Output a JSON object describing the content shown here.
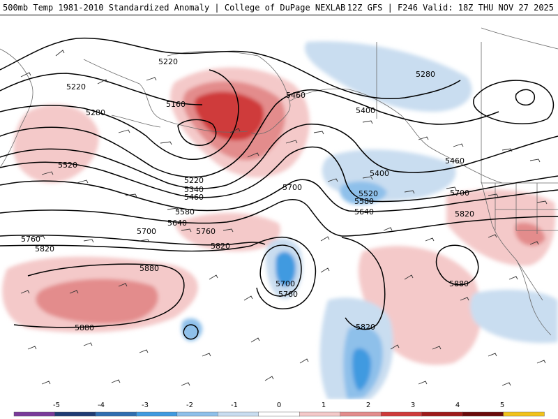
{
  "header": {
    "title_left": "500mb Temp 1981-2010 Standardized Anomaly | College of DuPage NEXLAB",
    "title_right": "12Z GFS | F246 Valid: 18Z THU NOV 27 2025"
  },
  "colors": {
    "coast": "#6a6a6a",
    "contour": "#000000",
    "barb": "#333333"
  },
  "contours": [
    {
      "label": "5220"
    },
    {
      "label": "5220"
    },
    {
      "label": "5160"
    },
    {
      "label": "5280"
    },
    {
      "label": "5460"
    },
    {
      "label": "5400"
    },
    {
      "label": "5280"
    },
    {
      "label": "5520"
    },
    {
      "label": "5220"
    },
    {
      "label": "5340"
    },
    {
      "label": "5460"
    },
    {
      "label": "5400"
    },
    {
      "label": "5520"
    },
    {
      "label": "5580"
    },
    {
      "label": "5640"
    },
    {
      "label": "5460"
    },
    {
      "label": "5700"
    },
    {
      "label": "5580"
    },
    {
      "label": "5640"
    },
    {
      "label": "5700"
    },
    {
      "label": "5760"
    },
    {
      "label": "5760"
    },
    {
      "label": "5820"
    },
    {
      "label": "5820"
    },
    {
      "label": "5700"
    },
    {
      "label": "5820"
    },
    {
      "label": "5880"
    },
    {
      "label": "5760"
    },
    {
      "label": "5700"
    },
    {
      "label": "5820"
    },
    {
      "label": "5880"
    },
    {
      "label": "5880"
    }
  ],
  "legend": {
    "ticks": [
      "-5",
      "-4",
      "-3",
      "-2",
      "-1",
      "0",
      "1",
      "2",
      "3",
      "4",
      "5"
    ],
    "colors": [
      "#7a3a9a",
      "#1f3b73",
      "#2f6db0",
      "#3f9ae0",
      "#8ec0ea",
      "#c9ddf0",
      "#ffffff",
      "#f4c9c9",
      "#e38c8c",
      "#cf3a3a",
      "#9e1a1a",
      "#6a0a0a",
      "#f2c21a"
    ]
  }
}
